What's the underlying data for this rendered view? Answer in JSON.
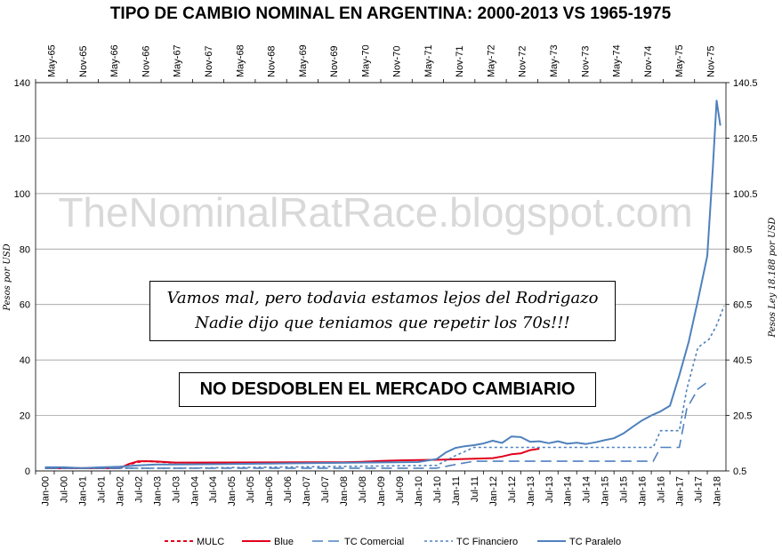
{
  "chart_data": {
    "type": "line",
    "title": "TIPO DE CAMBIO NOMINAL EN ARGENTINA: 2000-2013 VS 1965-1975",
    "watermark": "TheNominalRatRace.blogspot.com",
    "ylabel_left": "Pesos por USD",
    "ylabel_right": "Pesos Ley 18.188 por USD",
    "y_left": {
      "min": 0,
      "max": 140,
      "ticks": [
        "0",
        "20",
        "40",
        "60",
        "80",
        "100",
        "120",
        "140"
      ]
    },
    "y_right": {
      "min": 0.5,
      "max": 140.5,
      "ticks": [
        "0.5",
        "20.5",
        "40.5",
        "60.5",
        "80.5",
        "100.5",
        "120.5",
        "140.5"
      ]
    },
    "x_bottom_ticks": [
      "Jan-00",
      "Jul-00",
      "Jan-01",
      "Jul-01",
      "Jan-02",
      "Jul-02",
      "Jan-03",
      "Jul-03",
      "Jan-04",
      "Jul-04",
      "Jan-05",
      "Jul-05",
      "Jan-06",
      "Jul-06",
      "Jan-07",
      "Jul-07",
      "Jan-08",
      "Jul-08",
      "Jan-09",
      "Jul-09",
      "Jan-10",
      "Jul-10",
      "Jan-11",
      "Jul-11",
      "Jan-12",
      "Jul-12",
      "Jan-13",
      "Jul-13",
      "Jan-14",
      "Jul-14",
      "Jan-15",
      "Jul-15",
      "Jan-16",
      "Jul-16",
      "Jan-17",
      "Jul-17",
      "Jan-18"
    ],
    "x_top_ticks": [
      "May-65",
      "Nov-65",
      "May-66",
      "Nov-66",
      "May-67",
      "Nov-67",
      "May-68",
      "Nov-68",
      "May-69",
      "Nov-69",
      "May-70",
      "Nov-70",
      "May-71",
      "Nov-71",
      "May-72",
      "Nov-72",
      "May-73",
      "Nov-73",
      "May-74",
      "Nov-74",
      "May-75",
      "Nov-75"
    ],
    "grid": "horizontal",
    "legend_position": "bottom",
    "series": [
      {
        "name": "MULC",
        "axis": "left",
        "color": "#e0001b",
        "dash": "4,3",
        "width": 2,
        "x": [
          0,
          0.5,
          1,
          1.5,
          2,
          2.25,
          2.5,
          2.75,
          3,
          3.25,
          3.5
        ],
        "y": [
          1,
          1,
          1,
          1,
          1,
          2.3,
          3.2,
          3.6,
          3.3,
          3.1,
          2.9
        ]
      },
      {
        "name": "Blue",
        "axis": "left",
        "color": "#e0001b",
        "dash": "",
        "width": 2,
        "x": [
          0,
          0.5,
          1,
          1.5,
          2,
          2.25,
          2.5,
          2.75,
          3,
          3.25,
          3.5,
          7,
          7.5,
          8,
          8.5,
          9,
          9.5,
          10,
          10.5,
          11,
          11.5,
          12,
          12.25,
          12.5,
          12.75,
          13,
          13.25
        ],
        "y": [
          1,
          1,
          1,
          1,
          1,
          2.5,
          3.5,
          3.5,
          3.4,
          3.2,
          3,
          3.1,
          3.1,
          3.1,
          3.3,
          3.6,
          3.8,
          3.9,
          4,
          4.2,
          4.4,
          4.6,
          5.2,
          6,
          6.3,
          7.5,
          8
        ]
      },
      {
        "name": "TC Comercial",
        "axis": "right",
        "color": "#4f81bd",
        "dash": "12,6",
        "width": 1.6,
        "x": [
          0,
          3.5,
          10.5,
          11,
          11.5,
          16.3,
          16.5,
          17,
          17.2,
          17.5,
          17.8
        ],
        "y": [
          1.5,
          1.5,
          1.5,
          2.8,
          4,
          4,
          9,
          9,
          23,
          30,
          33
        ]
      },
      {
        "name": "TC Financiero",
        "axis": "right",
        "color": "#4f81bd",
        "dash": "3,3",
        "width": 1.6,
        "x": [
          0,
          3.5,
          10.5,
          11,
          11.5,
          16.3,
          16.5,
          17,
          17.2,
          17.5,
          17.8,
          18,
          18.2
        ],
        "y": [
          1.5,
          1.5,
          2.5,
          6,
          9,
          9,
          15,
          15,
          30,
          45,
          48,
          53,
          60
        ]
      },
      {
        "name": "TC Paralelo",
        "axis": "right",
        "color": "#4f81bd",
        "dash": "",
        "width": 2,
        "x": [
          0,
          0.5,
          1,
          1.5,
          2,
          2.5,
          3,
          3.5,
          10,
          10.5,
          10.75,
          11,
          11.25,
          11.5,
          11.75,
          12,
          12.25,
          12.5,
          12.75,
          13,
          13.25,
          13.5,
          13.75,
          14,
          14.25,
          14.5,
          14.75,
          15,
          15.25,
          15.5,
          15.75,
          16,
          16.25,
          16.5,
          16.75,
          17,
          17.25,
          17.5,
          17.75,
          17.9,
          18,
          18.1
        ],
        "y": [
          1.8,
          1.8,
          1.5,
          1.8,
          2,
          2.5,
          2.8,
          2.8,
          3.7,
          4.8,
          7.2,
          8.8,
          9.4,
          9.8,
          10.4,
          11.4,
          10.6,
          12.9,
          12.7,
          11,
          11.2,
          10.5,
          11.2,
          10.3,
          10.7,
          10.2,
          10.8,
          11.6,
          12.3,
          14,
          16.4,
          18.7,
          20.5,
          22,
          24,
          35,
          47,
          62,
          78,
          110,
          134,
          125
        ]
      }
    ]
  },
  "annotations": {
    "box1_line1": "Vamos mal, pero todavia estamos lejos del Rodrigazo",
    "box1_line2": "Nadie dijo que teniamos que repetir los 70s!!!",
    "box2": "NO DESDOBLEN EL MERCADO CAMBIARIO"
  }
}
